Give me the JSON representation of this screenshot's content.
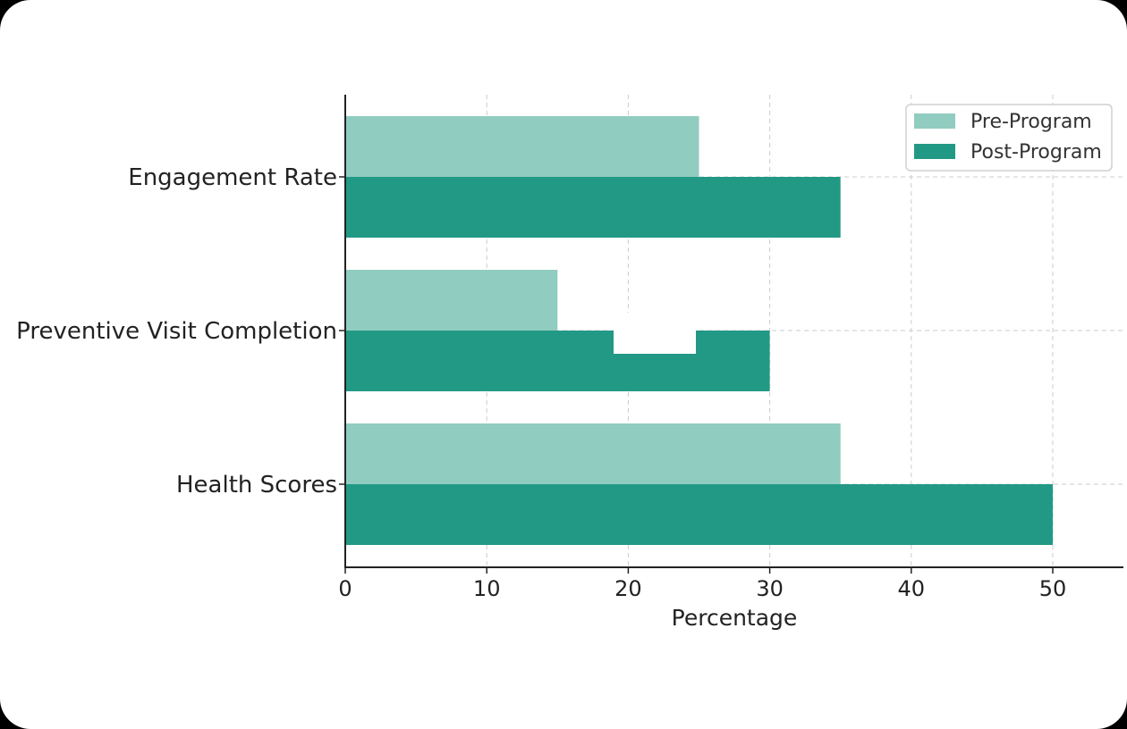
{
  "chart_data": {
    "type": "bar",
    "orientation": "horizontal",
    "categories": [
      "Engagement Rate",
      "Preventive Visit Completion",
      "Health Scores"
    ],
    "series": [
      {
        "name": "Pre-Program",
        "values": [
          25,
          15,
          35
        ],
        "color": "#91ccc0"
      },
      {
        "name": "Post-Program",
        "values": [
          35,
          30,
          50
        ],
        "color": "#229985"
      }
    ],
    "xlabel": "Percentage",
    "xlim": [
      0,
      55
    ],
    "xticks": [
      0,
      10,
      20,
      30,
      40,
      50
    ],
    "grid": true,
    "legend_position": "top-right"
  }
}
